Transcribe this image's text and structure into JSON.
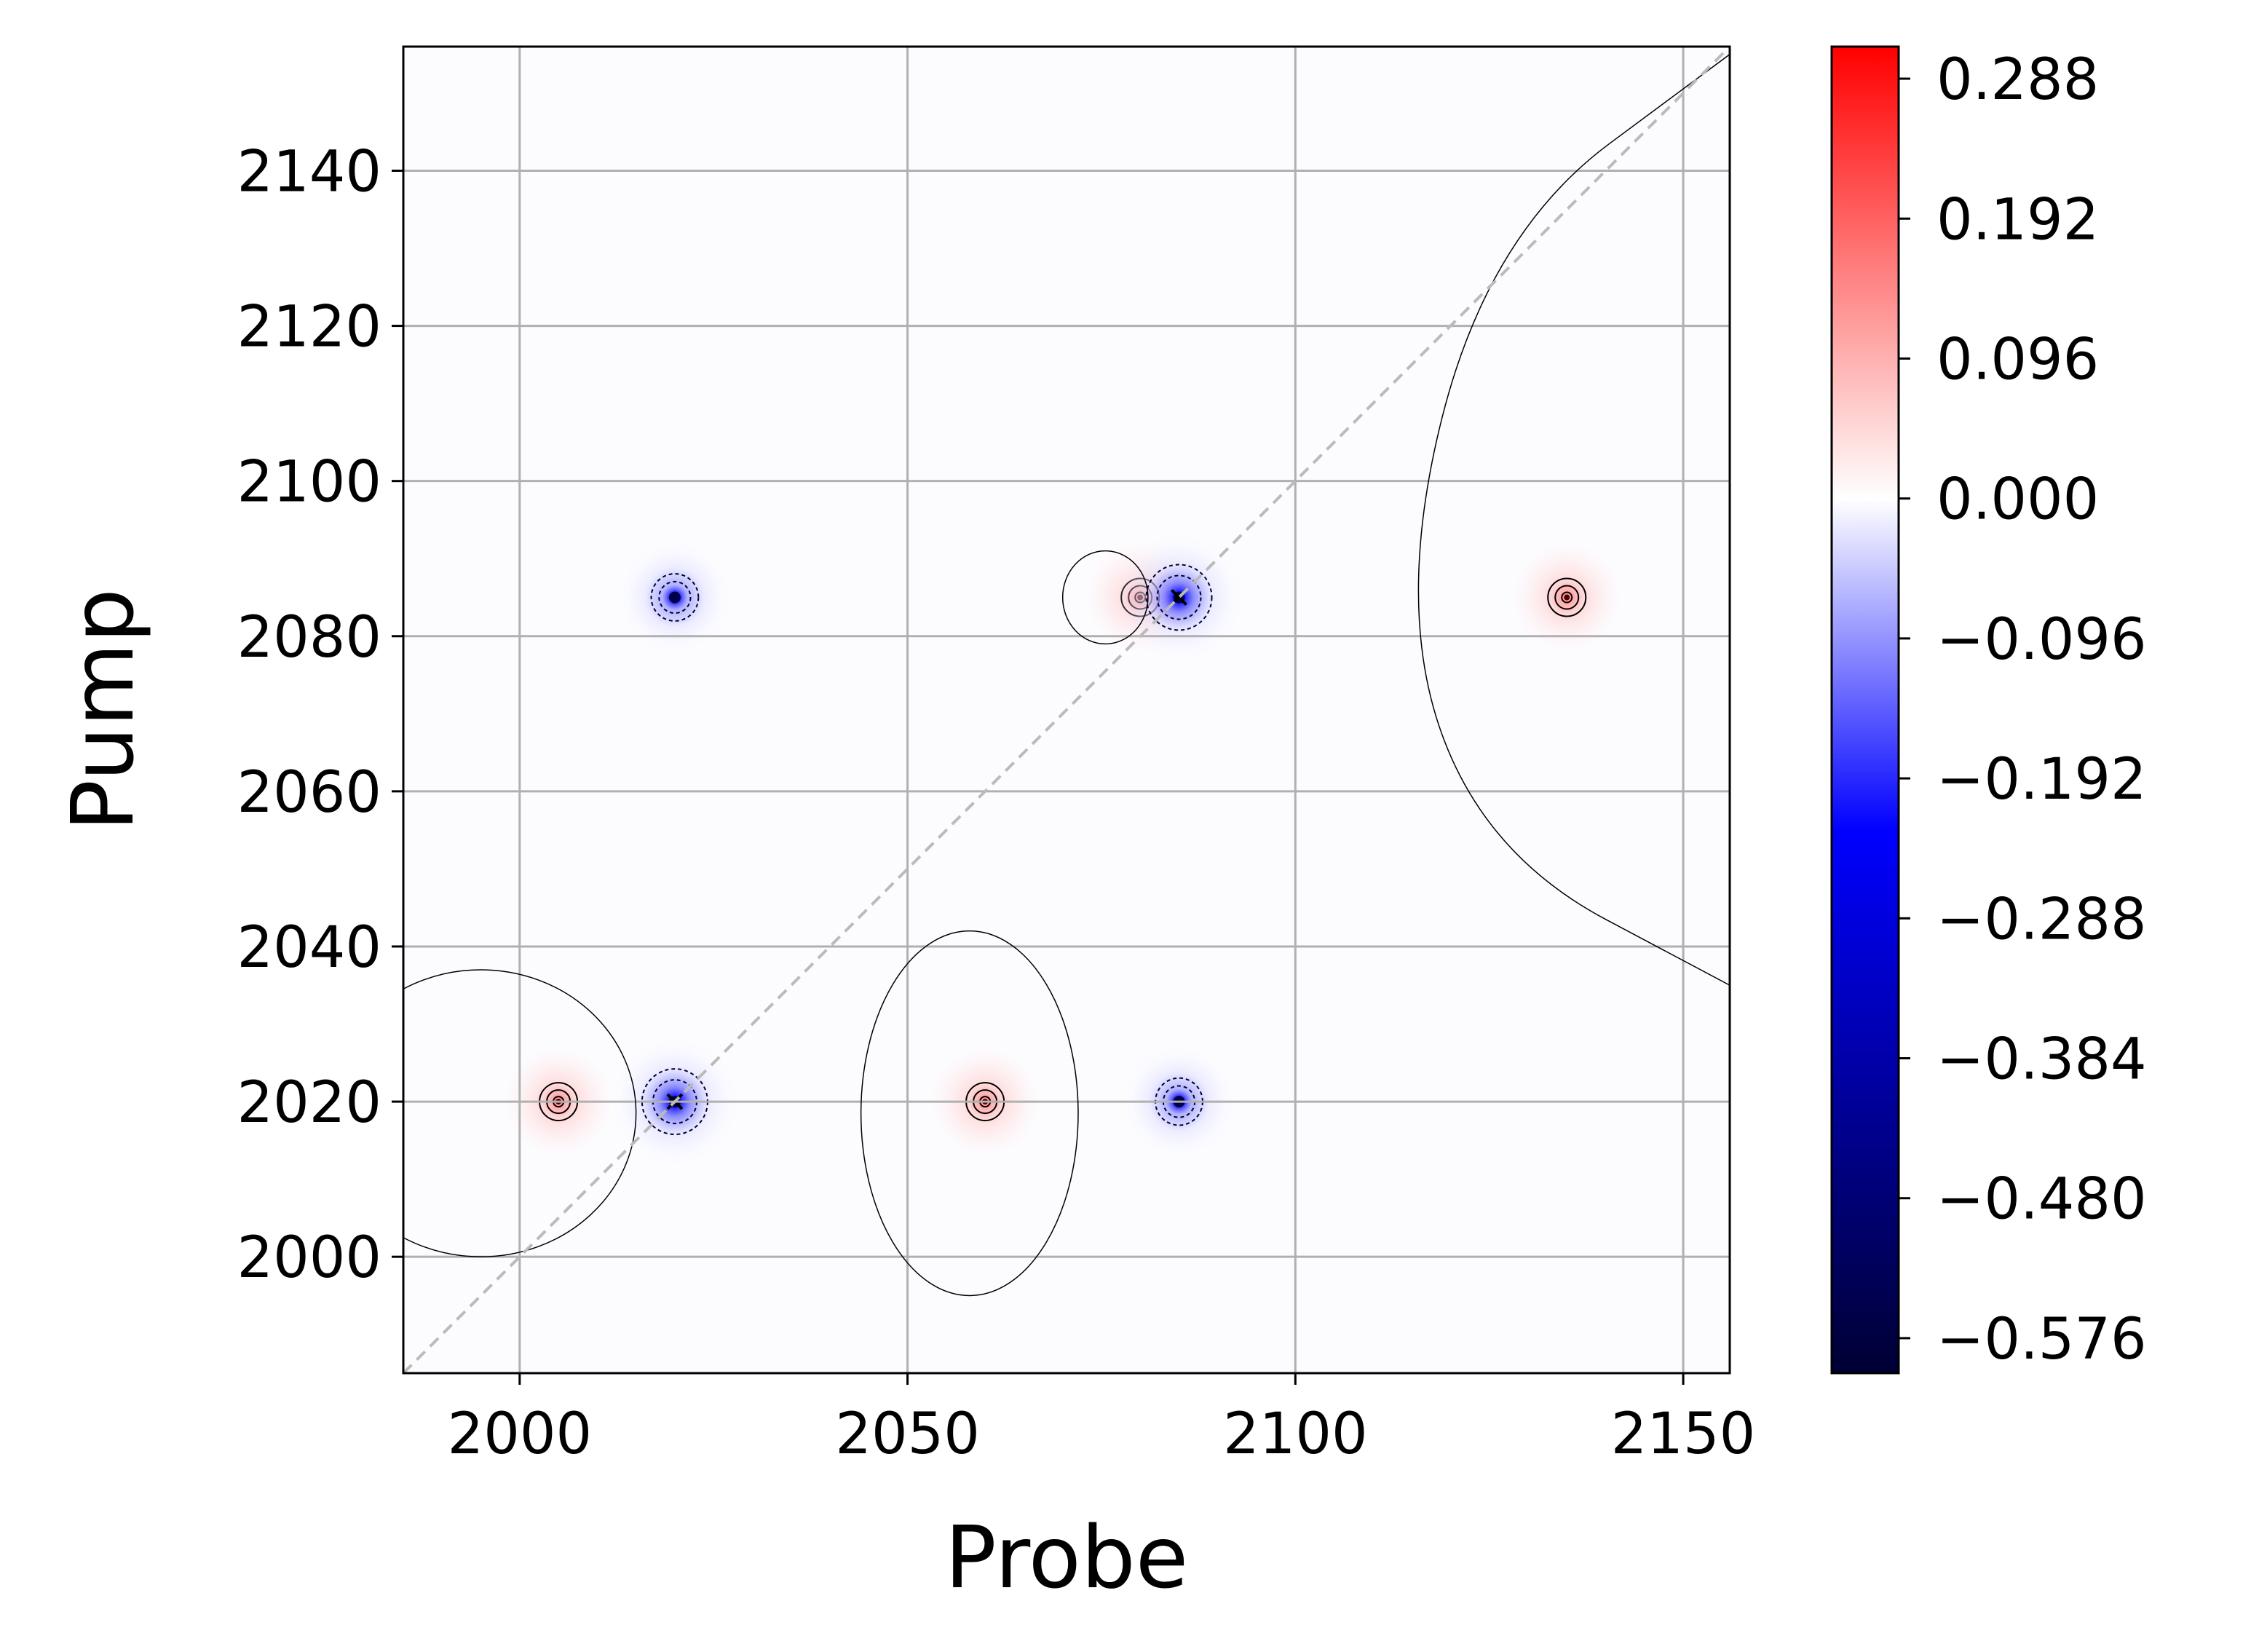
{
  "chart_data": {
    "type": "heatmap",
    "title": "",
    "xlabel": "Probe",
    "ylabel": "Pump",
    "xlim": [
      1985,
      2156
    ],
    "ylim": [
      1985,
      2156
    ],
    "x_ticks": [
      2000,
      2050,
      2100,
      2150
    ],
    "y_ticks": [
      2000,
      2020,
      2040,
      2060,
      2080,
      2100,
      2120,
      2140
    ],
    "grid": true,
    "diagonal_line": {
      "style": "dashed",
      "color": "#bbbbbb",
      "from": [
        1985,
        1985
      ],
      "to": [
        2156,
        2156
      ]
    },
    "colormap": "seismic",
    "colorbar": {
      "vmin": -0.6,
      "vmax": 0.31,
      "ticks": [
        "0.288",
        "0.192",
        "0.096",
        "0.000",
        "−0.096",
        "−0.192",
        "−0.288",
        "−0.384",
        "−0.480",
        "−0.576"
      ],
      "tick_values": [
        0.288,
        0.192,
        0.096,
        0.0,
        -0.096,
        -0.192,
        -0.288,
        -0.384,
        -0.48,
        -0.576
      ],
      "colors": [
        "#000033",
        "#0000ff",
        "#ffffff",
        "#ff0000"
      ]
    },
    "peaks": [
      {
        "probe": 2005,
        "pump": 2020,
        "value": 0.05
      },
      {
        "probe": 2020,
        "pump": 2020,
        "value": -0.6
      },
      {
        "probe": 2060,
        "pump": 2020,
        "value": 0.05
      },
      {
        "probe": 2085,
        "pump": 2020,
        "value": -0.3
      },
      {
        "probe": 2020,
        "pump": 2085,
        "value": -0.3
      },
      {
        "probe": 2080,
        "pump": 2085,
        "value": 0.05
      },
      {
        "probe": 2085,
        "pump": 2085,
        "value": -0.6
      },
      {
        "probe": 2135,
        "pump": 2085,
        "value": 0.05
      }
    ],
    "zero_contours": [
      {
        "shape": "ellipse",
        "probe_range": [
          1975,
          2015
        ],
        "pump_range": [
          2000,
          2037
        ]
      },
      {
        "shape": "ellipse",
        "probe_range": [
          2044,
          2072
        ],
        "pump_range": [
          1995,
          2042
        ]
      },
      {
        "shape": "ellipse",
        "probe_range": [
          2070,
          2081
        ],
        "pump_range": [
          2079,
          2091
        ]
      },
      {
        "shape": "open-curve",
        "points": [
          [
            2156,
            2155
          ],
          [
            2125,
            2132
          ],
          [
            2113,
            2085
          ],
          [
            2124,
            2052
          ],
          [
            2156,
            2035
          ]
        ]
      }
    ]
  }
}
